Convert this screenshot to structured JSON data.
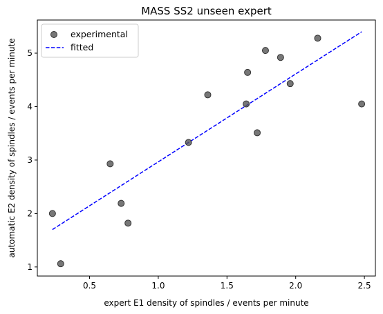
{
  "chart_data": {
    "type": "scatter",
    "title": "MASS SS2 unseen expert",
    "xlabel": "expert E1 density of spindles / events per minute",
    "ylabel": "automatic E2 density of spindles / events per minute",
    "xlim": [
      0.12,
      2.58
    ],
    "ylim": [
      0.83,
      5.62
    ],
    "xticks": [
      0.5,
      1.0,
      1.5,
      2.0,
      2.5
    ],
    "xtick_labels": [
      "0.5",
      "1.0",
      "1.5",
      "2.0",
      "2.5"
    ],
    "yticks": [
      1,
      2,
      3,
      4,
      5
    ],
    "ytick_labels": [
      "1",
      "2",
      "3",
      "4",
      "5"
    ],
    "grid": false,
    "legend_position": "top-left",
    "series": [
      {
        "name": "experimental",
        "kind": "scatter",
        "color": "#555555",
        "x": [
          0.23,
          0.29,
          0.65,
          0.73,
          0.78,
          1.22,
          1.36,
          1.64,
          1.65,
          1.72,
          1.78,
          1.89,
          1.96,
          2.16,
          2.48
        ],
        "y": [
          2.0,
          1.06,
          2.93,
          2.19,
          1.82,
          3.33,
          4.22,
          4.05,
          4.64,
          3.51,
          5.05,
          4.92,
          4.43,
          5.28,
          4.05
        ]
      },
      {
        "name": "fitted",
        "kind": "line",
        "style": "dashed",
        "color": "#0000ff",
        "x": [
          0.23,
          2.48
        ],
        "y": [
          1.7,
          5.4
        ]
      }
    ]
  }
}
